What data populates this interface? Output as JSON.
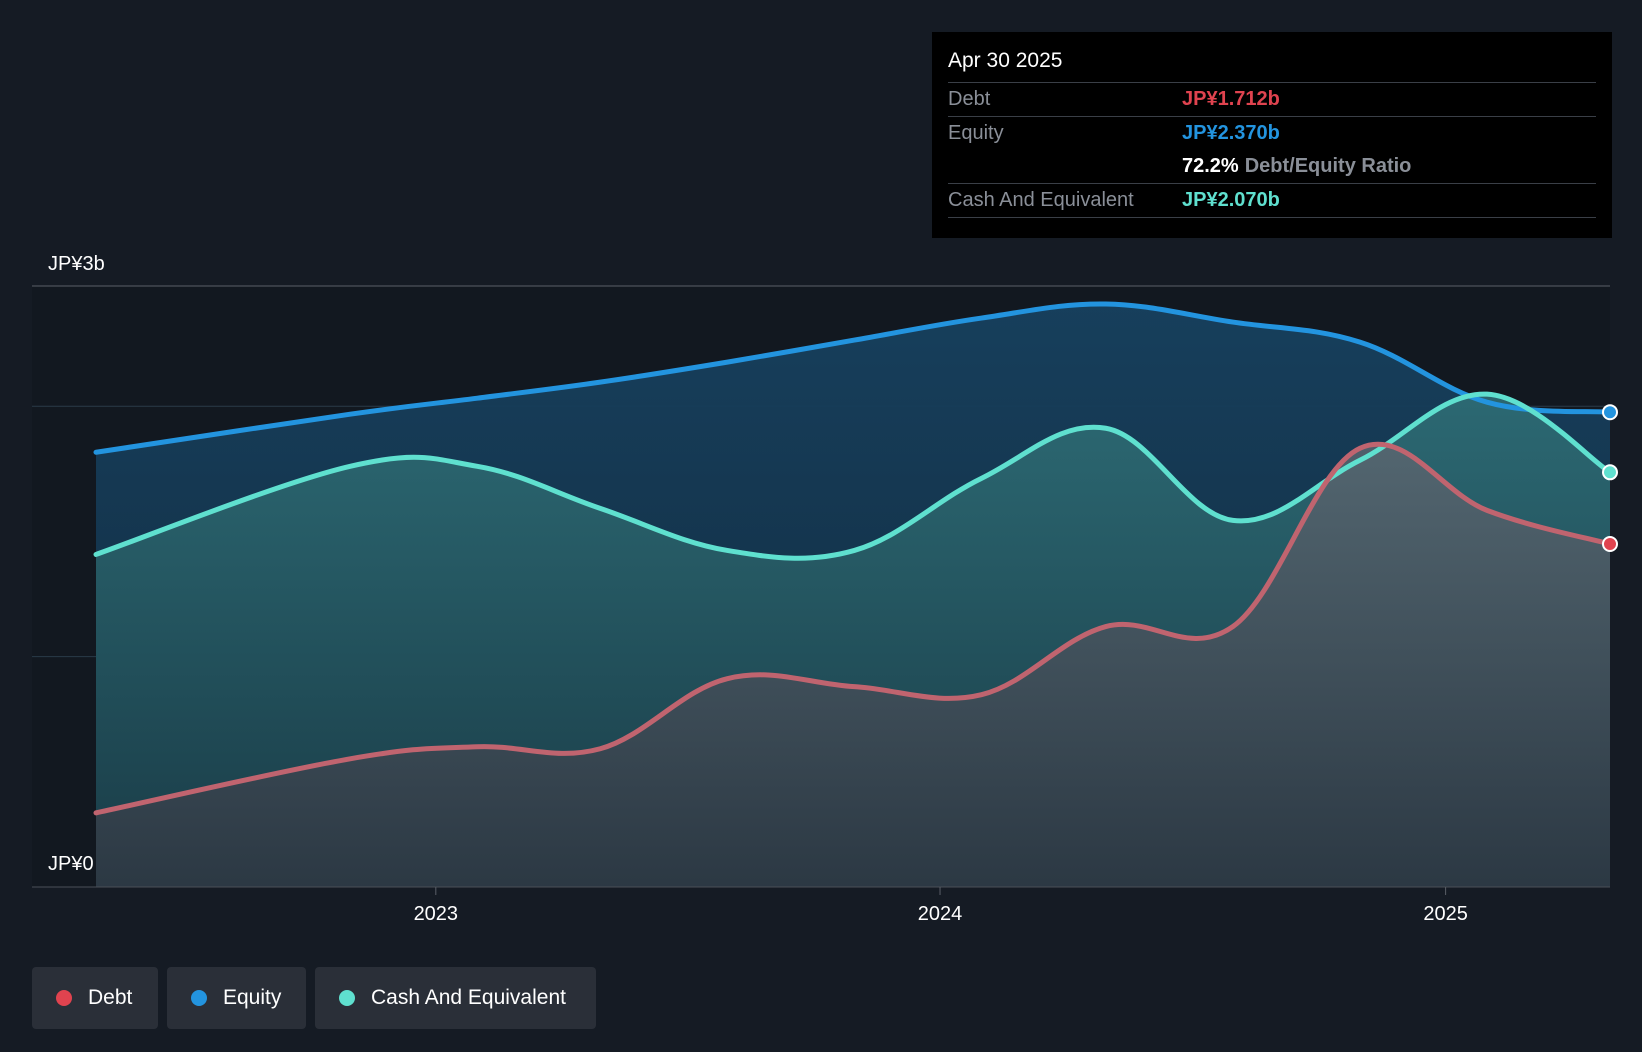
{
  "chart_data": {
    "type": "area",
    "x": [
      "2022-04-30",
      "2022-10-31",
      "2023-01-31",
      "2023-04-30",
      "2023-07-31",
      "2023-10-31",
      "2024-01-31",
      "2024-04-30",
      "2024-07-31",
      "2024-10-31",
      "2025-01-31",
      "2025-04-30"
    ],
    "series": [
      {
        "name": "Debt",
        "color": "#e0434f",
        "values": [
          0.37,
          0.64,
          0.7,
          0.69,
          1.04,
          1.0,
          0.96,
          1.3,
          1.3,
          2.19,
          1.88,
          1.712
        ]
      },
      {
        "name": "Equity",
        "color": "#2394df",
        "values": [
          2.17,
          2.36,
          2.44,
          2.52,
          2.62,
          2.73,
          2.84,
          2.91,
          2.82,
          2.72,
          2.42,
          2.37
        ]
      },
      {
        "name": "Cash And Equivalent",
        "color": "#5fe0cf",
        "values": [
          1.66,
          2.1,
          2.1,
          1.89,
          1.68,
          1.68,
          2.04,
          2.29,
          1.83,
          2.13,
          2.46,
          2.07
        ]
      }
    ],
    "ylim": [
      0,
      3
    ],
    "y_tick_labels": [
      "JP¥3b",
      "JP¥0"
    ],
    "x_tick_labels": [
      {
        "label": "2023",
        "date": "2023-01-01"
      },
      {
        "label": "2024",
        "date": "2024-01-01"
      },
      {
        "label": "2025",
        "date": "2025-01-01"
      }
    ],
    "x_range": [
      "2022-04-30",
      "2025-05-31"
    ]
  },
  "tooltip": {
    "date": "Apr 30 2025",
    "debt_label": "Debt",
    "debt_value": "JP¥1.712b",
    "equity_label": "Equity",
    "equity_value": "JP¥2.370b",
    "ratio_value": "72.2%",
    "ratio_label": "Debt/Equity Ratio",
    "cash_label": "Cash And Equivalent",
    "cash_value": "JP¥2.070b"
  },
  "legend": {
    "items": [
      {
        "label": "Debt",
        "color": "#e0434f"
      },
      {
        "label": "Equity",
        "color": "#2394df"
      },
      {
        "label": "Cash And Equivalent",
        "color": "#5fe0cf"
      }
    ]
  },
  "colors": {
    "debt": "#e0434f",
    "equity": "#2394df",
    "cash": "#5fe0cf"
  }
}
